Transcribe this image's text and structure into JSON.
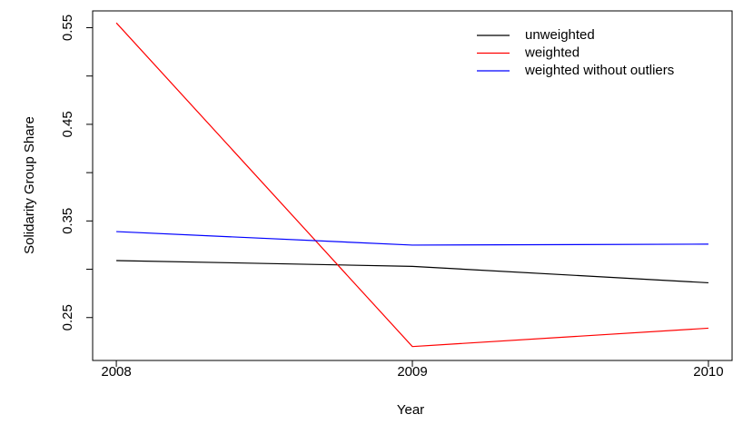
{
  "chart_data": {
    "type": "line",
    "x_label": "Year",
    "y_label": "Solidarity Group Share",
    "x": [
      2008,
      2009,
      2010
    ],
    "series": [
      {
        "name": "unweighted",
        "color": "#000000",
        "values": [
          0.309,
          0.303,
          0.286
        ]
      },
      {
        "name": "weighted",
        "color": "#ff0000",
        "values": [
          0.555,
          0.22,
          0.239
        ]
      },
      {
        "name": "weighted without outliers",
        "color": "#0000ff",
        "values": [
          0.339,
          0.325,
          0.326
        ]
      }
    ],
    "xlim": [
      2007.92,
      2010.08
    ],
    "xticks": [
      2008,
      2009,
      2010
    ],
    "ylim": [
      0.2056,
      0.5674
    ],
    "yticks": [
      0.25,
      0.35,
      0.45,
      0.55
    ],
    "yminor_ticks": [
      0.3,
      0.4,
      0.5
    ],
    "grid": false,
    "legend": "top-right"
  }
}
